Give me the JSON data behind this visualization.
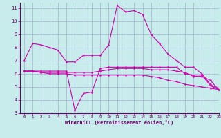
{
  "title": "",
  "xlabel": "Windchill (Refroidissement éolien,°C)",
  "ylabel": "",
  "xlim": [
    -0.5,
    23
  ],
  "ylim": [
    3,
    11.4
  ],
  "yticks": [
    3,
    4,
    5,
    6,
    7,
    8,
    9,
    10,
    11
  ],
  "xticks": [
    0,
    1,
    2,
    3,
    4,
    5,
    6,
    7,
    8,
    9,
    10,
    11,
    12,
    13,
    14,
    15,
    16,
    17,
    18,
    19,
    20,
    21,
    22,
    23
  ],
  "bg_color": "#c8ecec",
  "grid_color": "#a0b0cc",
  "line_color": "#cc00aa",
  "tick_color": "#660066",
  "lines": [
    {
      "x": [
        0,
        1,
        2,
        3,
        4,
        5,
        6,
        7,
        8,
        9,
        10,
        11,
        12,
        13,
        14,
        15,
        16,
        17,
        18,
        19,
        20,
        21,
        22,
        23
      ],
      "y": [
        7.0,
        8.3,
        8.2,
        8.0,
        7.8,
        6.9,
        6.9,
        7.4,
        7.4,
        7.4,
        8.2,
        11.2,
        10.7,
        10.8,
        10.5,
        9.0,
        8.3,
        7.5,
        7.0,
        6.5,
        6.5,
        6.0,
        5.2,
        4.8
      ]
    },
    {
      "x": [
        0,
        1,
        2,
        3,
        4,
        5,
        6,
        7,
        8,
        9,
        10,
        11,
        12,
        13,
        14,
        15,
        16,
        17,
        18,
        19,
        20,
        21,
        22,
        23
      ],
      "y": [
        6.2,
        6.2,
        6.2,
        6.2,
        6.2,
        6.2,
        3.2,
        4.5,
        4.6,
        6.4,
        6.5,
        6.5,
        6.5,
        6.5,
        6.5,
        6.5,
        6.5,
        6.5,
        6.5,
        6.0,
        5.9,
        5.9,
        5.1,
        4.8
      ]
    },
    {
      "x": [
        0,
        1,
        2,
        3,
        4,
        5,
        6,
        7,
        8,
        9,
        10,
        11,
        12,
        13,
        14,
        15,
        16,
        17,
        18,
        19,
        20,
        21,
        22,
        23
      ],
      "y": [
        6.2,
        6.2,
        6.1,
        6.1,
        6.1,
        6.1,
        6.1,
        6.1,
        6.1,
        6.2,
        6.3,
        6.4,
        6.4,
        6.4,
        6.4,
        6.3,
        6.3,
        6.3,
        6.2,
        6.1,
        5.8,
        5.8,
        5.5,
        4.8
      ]
    },
    {
      "x": [
        0,
        1,
        2,
        3,
        4,
        5,
        6,
        7,
        8,
        9,
        10,
        11,
        12,
        13,
        14,
        15,
        16,
        17,
        18,
        19,
        20,
        21,
        22,
        23
      ],
      "y": [
        6.2,
        6.2,
        6.1,
        6.0,
        6.0,
        6.0,
        5.9,
        5.9,
        5.9,
        5.9,
        5.9,
        5.9,
        5.9,
        5.9,
        5.9,
        5.8,
        5.7,
        5.5,
        5.4,
        5.2,
        5.1,
        5.0,
        4.9,
        4.8
      ]
    }
  ]
}
